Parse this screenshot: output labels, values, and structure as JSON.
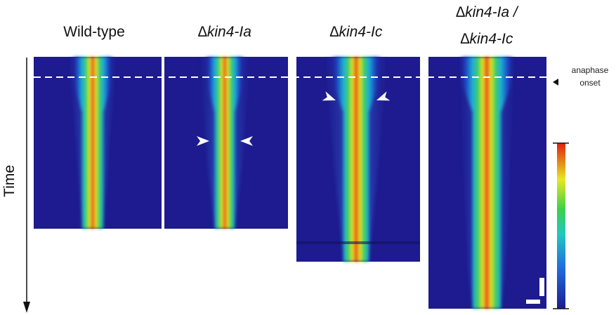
{
  "panels": [
    {
      "title": "Wild-type"
    },
    {
      "title": "∆kin4-Ia"
    },
    {
      "title": "∆kin4-Ic"
    },
    {
      "title_lines": [
        "∆kin4-Ia /",
        "∆kin4-Ic"
      ]
    }
  ],
  "axis_label": "Time",
  "annotation": [
    "anaphase",
    "onset"
  ]
}
